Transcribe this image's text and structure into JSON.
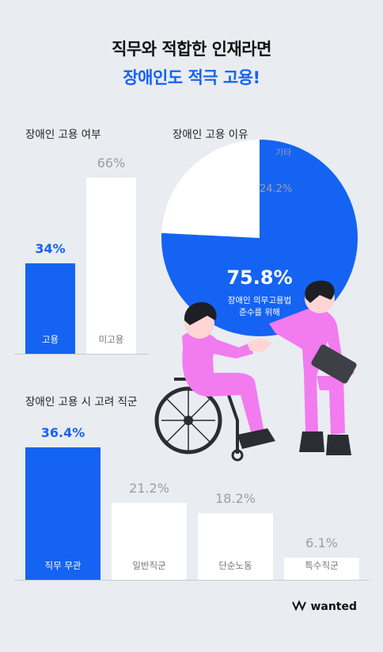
{
  "headline": {
    "line1": "직무와 적합한 인재라면",
    "line2": "장애인도 적극 고용!"
  },
  "colors": {
    "accent": "#1463f3",
    "background": "#e9ecf1",
    "bar_light": "#ffffff"
  },
  "chart_data": [
    {
      "type": "bar",
      "title": "장애인 고용 여부",
      "categories": [
        "고용",
        "미고용"
      ],
      "values": [
        34,
        66
      ],
      "value_labels": [
        "34%",
        "66%"
      ],
      "unit": "%"
    },
    {
      "type": "pie",
      "title": "장애인 고용 이유",
      "slices": [
        {
          "label": "장애인 의무고용법 준수를 위해",
          "label_line1": "장애인 의무고용법",
          "label_line2": "준수를 위해",
          "value": 75.8,
          "value_label": "75.8%"
        },
        {
          "label": "기타",
          "value": 24.2,
          "value_label": "24.2%"
        }
      ],
      "unit": "%"
    },
    {
      "type": "bar",
      "title": "장애인 고용 시 고려 직군",
      "categories": [
        "직무 무관",
        "일반직군",
        "단순노동",
        "특수직군"
      ],
      "values": [
        36.4,
        21.2,
        18.2,
        6.1
      ],
      "value_labels": [
        "36.4%",
        "21.2%",
        "18.2%",
        "6.1%"
      ],
      "unit": "%"
    }
  ],
  "brand": {
    "logo_text": "wanted",
    "logo_icon": "wanted-logo-icon"
  }
}
